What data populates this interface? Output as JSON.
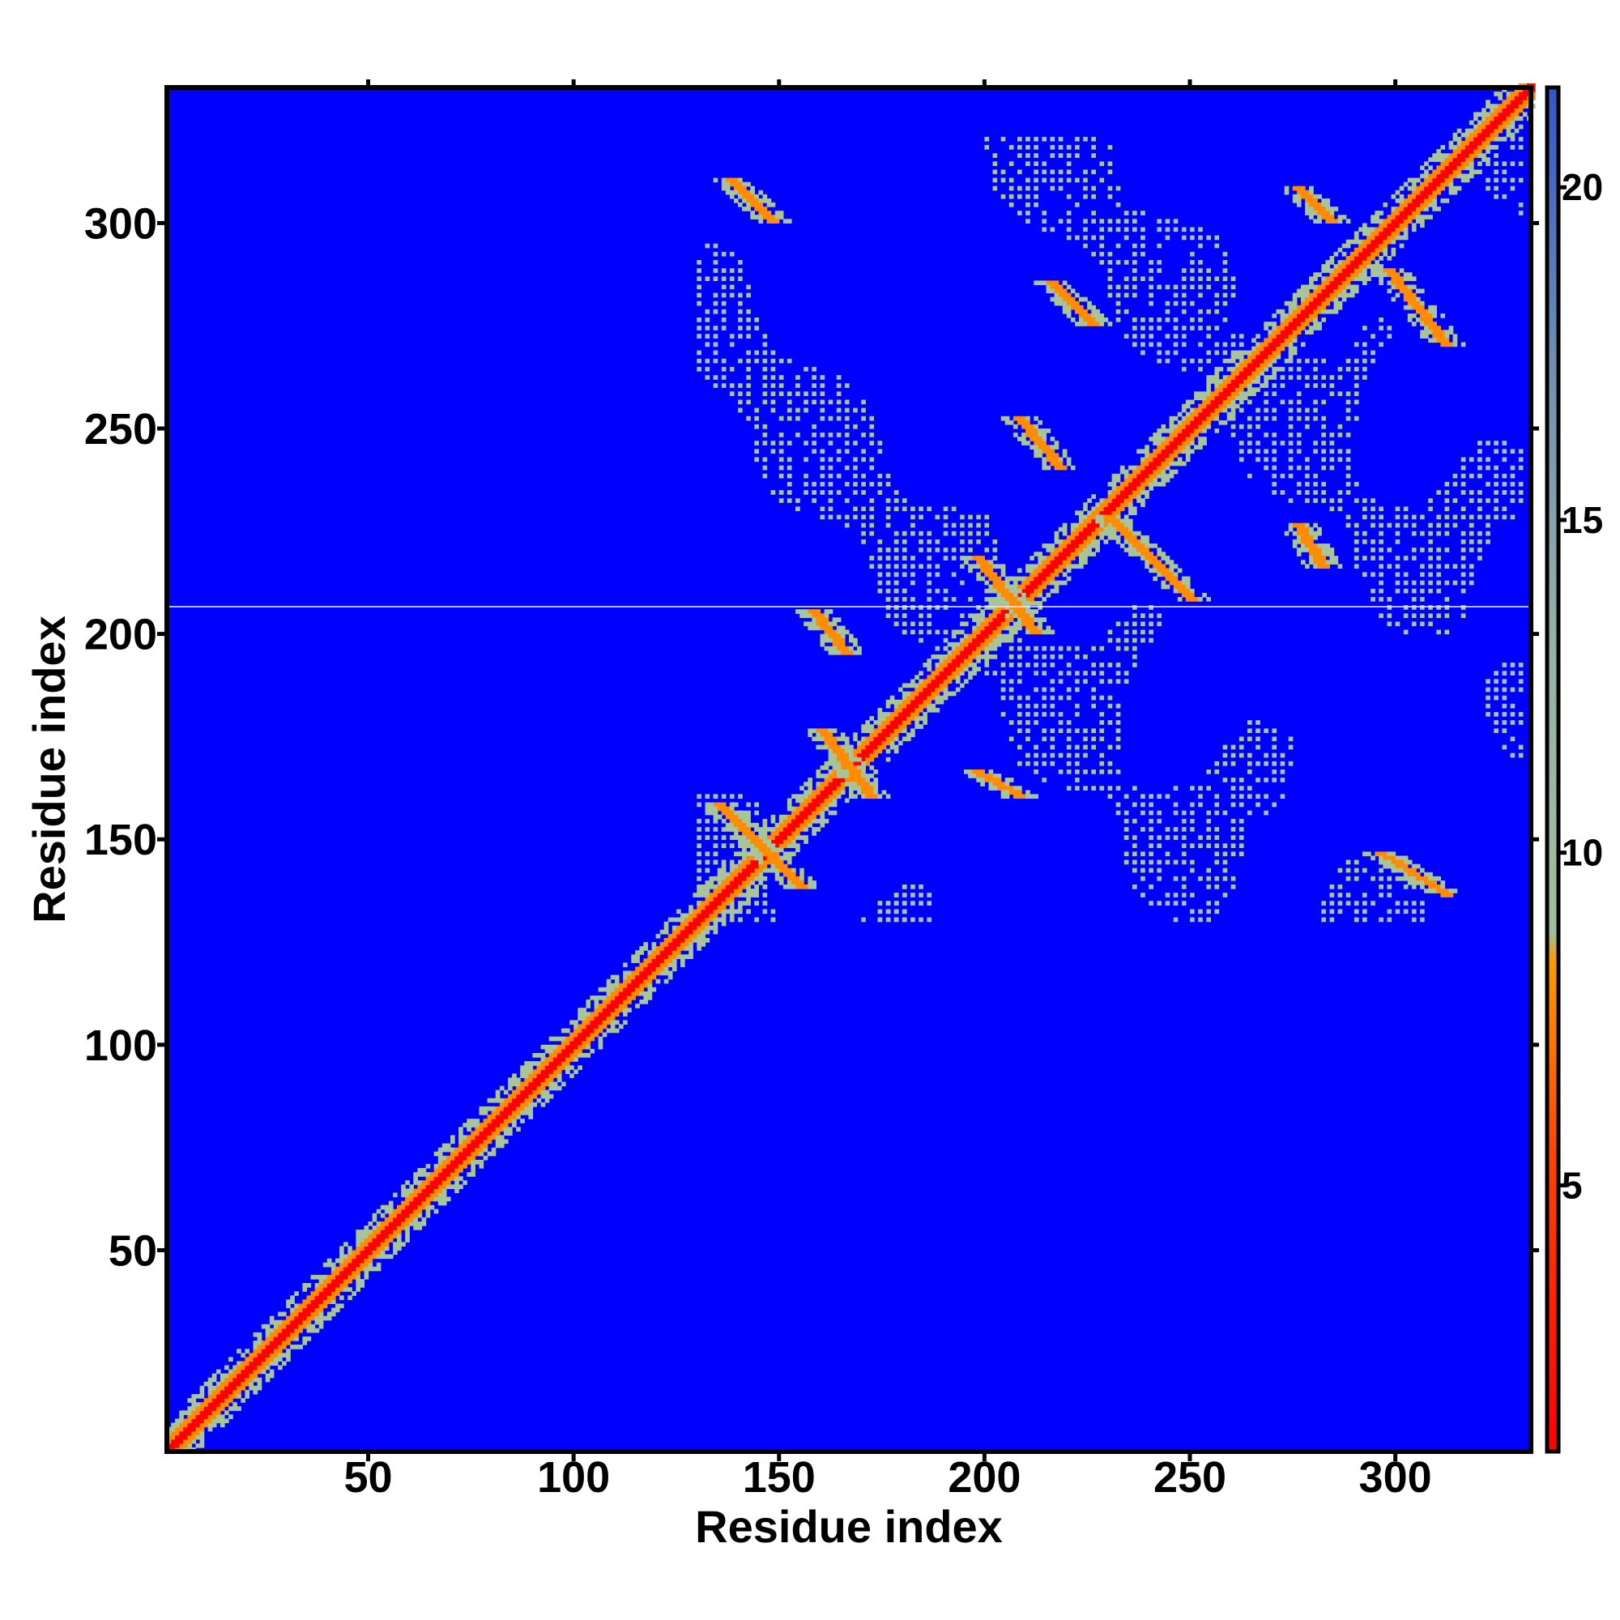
{
  "chart_data": {
    "type": "heatmap",
    "title": "",
    "xlabel": "Residue index",
    "ylabel": "Residue index",
    "xlim": [
      1,
      333
    ],
    "ylim": [
      1,
      333
    ],
    "x_ticks": [
      50,
      100,
      150,
      200,
      250,
      300
    ],
    "y_ticks": [
      50,
      100,
      150,
      200,
      250,
      300
    ],
    "colorbar": {
      "ticks": [
        5,
        10,
        15,
        20
      ],
      "range": [
        1,
        21.5
      ],
      "colors": [
        "#ff0000",
        "#ff8800",
        "#ffaa00",
        "#99b8a0",
        "#7f9bb0",
        "#0000ff"
      ]
    },
    "background_value": 21.5,
    "colors": {
      "background": "#0000ff",
      "near": "#ff0000",
      "mid": "#ff8c00",
      "far": "#a8c59a"
    },
    "contact_features": {
      "diagonal": [
        1,
        333
      ],
      "blocks": [
        {
          "x": [
            130,
            330
          ],
          "y": [
            130,
            320
          ],
          "value": 11
        },
        {
          "x": [
            130,
            180
          ],
          "y": [
            130,
            220
          ],
          "value": 11
        }
      ],
      "bands": [
        {
          "from": [
            135,
            158
          ],
          "to": [
            155,
            138
          ],
          "value": 6
        },
        {
          "from": [
            138,
            310
          ],
          "to": [
            148,
            300
          ],
          "value": 6
        },
        {
          "from": [
            158,
            205
          ],
          "to": [
            166,
            195
          ],
          "value": 6
        },
        {
          "from": [
            198,
            218
          ],
          "to": [
            212,
            200
          ],
          "value": 6
        },
        {
          "from": [
            198,
            166
          ],
          "to": [
            208,
            160
          ],
          "value": 6
        },
        {
          "from": [
            208,
            252
          ],
          "to": [
            218,
            240
          ],
          "value": 6
        },
        {
          "from": [
            216,
            285
          ],
          "to": [
            226,
            275
          ],
          "value": 6
        },
        {
          "from": [
            230,
            228
          ],
          "to": [
            250,
            208
          ],
          "value": 6
        },
        {
          "from": [
            276,
            308
          ],
          "to": [
            284,
            300
          ],
          "value": 6
        },
        {
          "from": [
            276,
            226
          ],
          "to": [
            282,
            216
          ],
          "value": 6
        },
        {
          "from": [
            296,
            146
          ],
          "to": [
            312,
            136
          ],
          "value": 6
        },
        {
          "from": [
            298,
            288
          ],
          "to": [
            312,
            270
          ],
          "value": 6
        },
        {
          "from": [
            160,
            176
          ],
          "to": [
            172,
            160
          ],
          "value": 7
        }
      ]
    }
  }
}
